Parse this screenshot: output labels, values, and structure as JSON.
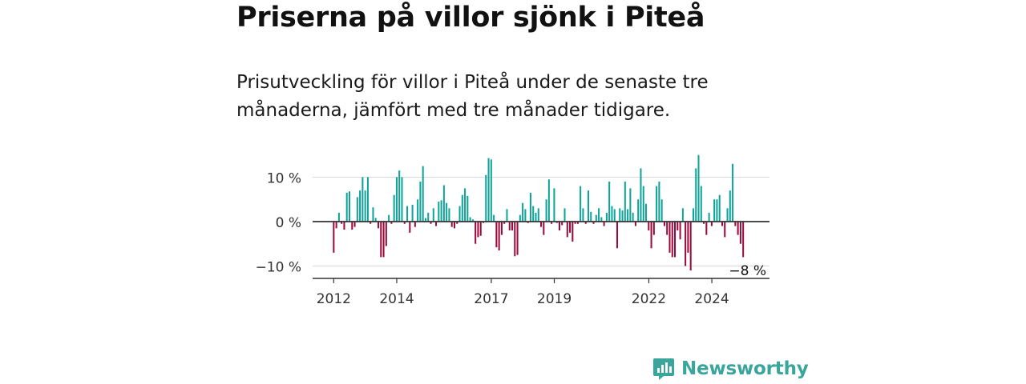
{
  "title": "Priserna på villor sjönk i Piteå",
  "subtitle": "Prisutveckling för villor i Piteå under de senaste tre månaderna, jämfört med tre månader tidigare.",
  "brand": {
    "name": "Newsworthy",
    "color": "#3aa59b"
  },
  "colors": {
    "positive": "#0fa39a",
    "negative": "#9a0a3c",
    "grid": "#d9d9d9",
    "axis": "#333333"
  },
  "chart_data": {
    "type": "bar",
    "title": "",
    "xlabel": "",
    "ylabel": "",
    "ylim": [
      -12.5,
      16
    ],
    "yticks": [
      10,
      0,
      -10
    ],
    "ytick_labels": [
      "10 %",
      "0 %",
      "−10 %"
    ],
    "xticks": [
      2012,
      2014,
      2017,
      2019,
      2022,
      2024
    ],
    "x_range": [
      2011.33,
      2025.83
    ],
    "first_month": 2012.0,
    "step_years": 0.0833,
    "annotation": "−8 %",
    "values": [
      -7,
      -1.5,
      2,
      -0.5,
      -1.8,
      6.5,
      6.8,
      -1.8,
      -1.2,
      5.5,
      7,
      10,
      7,
      10,
      -0.5,
      3.2,
      0.8,
      -1.5,
      -8,
      -8,
      -5.5,
      1.5,
      -0.5,
      6,
      10,
      11.5,
      10,
      -0.5,
      3.5,
      -2.5,
      3.8,
      -1.2,
      5,
      9,
      12.5,
      0.8,
      2,
      -0.5,
      3,
      -1,
      4.5,
      4.8,
      8.2,
      4.2,
      3,
      -1.2,
      -1.5,
      -0.5,
      3.5,
      6,
      7.5,
      5.8,
      1,
      0.5,
      -5,
      -3.5,
      -3.2,
      -0.3,
      10.5,
      14.3,
      14,
      1.5,
      -5.8,
      -6.5,
      -3,
      -0.5,
      2.8,
      -2,
      -2,
      -7.8,
      -7.5,
      1.5,
      4.2,
      2.8,
      -0.3,
      6.5,
      3.5,
      2,
      3,
      -1.2,
      -3,
      5,
      9.5,
      -0.5,
      7.5,
      -0.3,
      -2,
      -0.8,
      3,
      -3.5,
      -2.5,
      -4.5,
      -0.5,
      -0.5,
      8,
      3,
      -0.5,
      7,
      2.2,
      -0.5,
      1.5,
      3,
      1,
      -1,
      2,
      9,
      3.5,
      2.8,
      -6,
      3,
      2.5,
      9,
      2.8,
      7.5,
      2,
      -1,
      5,
      12,
      8,
      4,
      -2,
      -6,
      -3,
      8,
      9,
      5,
      -1,
      -3,
      -7,
      -8,
      -8,
      -2,
      -4,
      3,
      -10,
      -7,
      -11,
      3,
      12,
      15,
      8,
      -0.5,
      -3,
      2,
      -1,
      5,
      5,
      6,
      -1,
      -3.5,
      3,
      7,
      13,
      -1,
      -3,
      -5,
      -8
    ]
  }
}
